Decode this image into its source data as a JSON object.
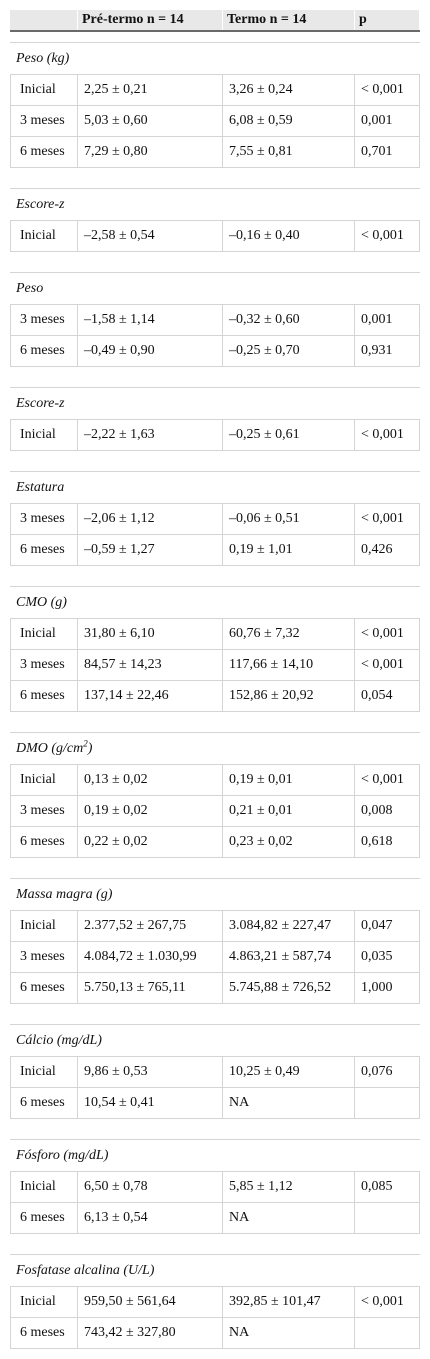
{
  "header": {
    "col1": "",
    "col2": "Pré-termo n = 14",
    "col3": "Termo n = 14",
    "col4": "p"
  },
  "groups": [
    {
      "title": "Peso (kg)",
      "rows": [
        [
          "Inicial",
          "2,25 ± 0,21",
          "3,26 ± 0,24",
          "< 0,001"
        ],
        [
          "3 meses",
          "5,03 ± 0,60",
          "6,08 ± 0,59",
          "0,001"
        ],
        [
          "6 meses",
          "7,29 ± 0,80",
          "7,55 ± 0,81",
          "0,701"
        ]
      ]
    },
    {
      "title": "Escore-z",
      "rows": [
        [
          "Inicial",
          "–2,58 ± 0,54",
          "–0,16 ± 0,40",
          "< 0,001"
        ]
      ]
    },
    {
      "title": "Peso",
      "rows": [
        [
          "3 meses",
          "–1,58 ± 1,14",
          "–0,32 ± 0,60",
          "0,001"
        ],
        [
          "6 meses",
          "–0,49 ± 0,90",
          "–0,25 ± 0,70",
          "0,931"
        ]
      ]
    },
    {
      "title": "Escore-z",
      "rows": [
        [
          "Inicial",
          "–2,22 ± 1,63",
          "–0,25 ± 0,61",
          "< 0,001"
        ]
      ]
    },
    {
      "title": "Estatura",
      "rows": [
        [
          "3 meses",
          "–2,06 ± 1,12",
          "–0,06 ± 0,51",
          "< 0,001"
        ],
        [
          "6 meses",
          "–0,59 ± 1,27",
          "0,19 ± 1,01",
          "0,426"
        ]
      ]
    },
    {
      "title": "CMO (g)",
      "rows": [
        [
          "Inicial",
          "31,80 ± 6,10",
          "60,76 ± 7,32",
          "< 0,001"
        ],
        [
          "3 meses",
          "84,57 ± 14,23",
          "117,66 ± 14,10",
          "< 0,001"
        ],
        [
          "6 meses",
          "137,14 ± 22,46",
          "152,86 ± 20,92",
          "0,054"
        ]
      ]
    },
    {
      "title": "DMO (g/cm",
      "title_sup": "2",
      "title_suffix": ")",
      "rows": [
        [
          "Inicial",
          "0,13 ± 0,02",
          "0,19 ± 0,01",
          "< 0,001"
        ],
        [
          "3 meses",
          "0,19 ± 0,02",
          "0,21 ± 0,01",
          "0,008"
        ],
        [
          "6 meses",
          "0,22 ± 0,02",
          "0,23 ± 0,02",
          "0,618"
        ]
      ]
    },
    {
      "title": "Massa magra (g)",
      "rows": [
        [
          "Inicial",
          "2.377,52 ± 267,75",
          "3.084,82 ± 227,47",
          "0,047"
        ],
        [
          "3 meses",
          "4.084,72 ± 1.030,99",
          "4.863,21 ± 587,74",
          "0,035"
        ],
        [
          "6 meses",
          "5.750,13 ± 765,11",
          "5.745,88 ± 726,52",
          "1,000"
        ]
      ]
    },
    {
      "title": "Cálcio (mg/dL)",
      "rows": [
        [
          "Inicial",
          "9,86 ± 0,53",
          "10,25 ± 0,49",
          "0,076"
        ],
        [
          "6 meses",
          "10,54 ± 0,41",
          "NA",
          ""
        ]
      ]
    },
    {
      "title": "Fósforo (mg/dL)",
      "rows": [
        [
          "Inicial",
          "6,50 ± 0,78",
          "5,85 ± 1,12",
          "0,085"
        ],
        [
          "6 meses",
          "6,13 ± 0,54",
          "NA",
          ""
        ]
      ]
    },
    {
      "title": "Fosfatase alcalina (U/L)",
      "rows": [
        [
          "Inicial",
          "959,50 ± 561,64",
          "392,85 ± 101,47",
          "< 0,001"
        ],
        [
          "6 meses",
          "743,42 ± 327,80",
          "NA",
          ""
        ]
      ]
    }
  ]
}
